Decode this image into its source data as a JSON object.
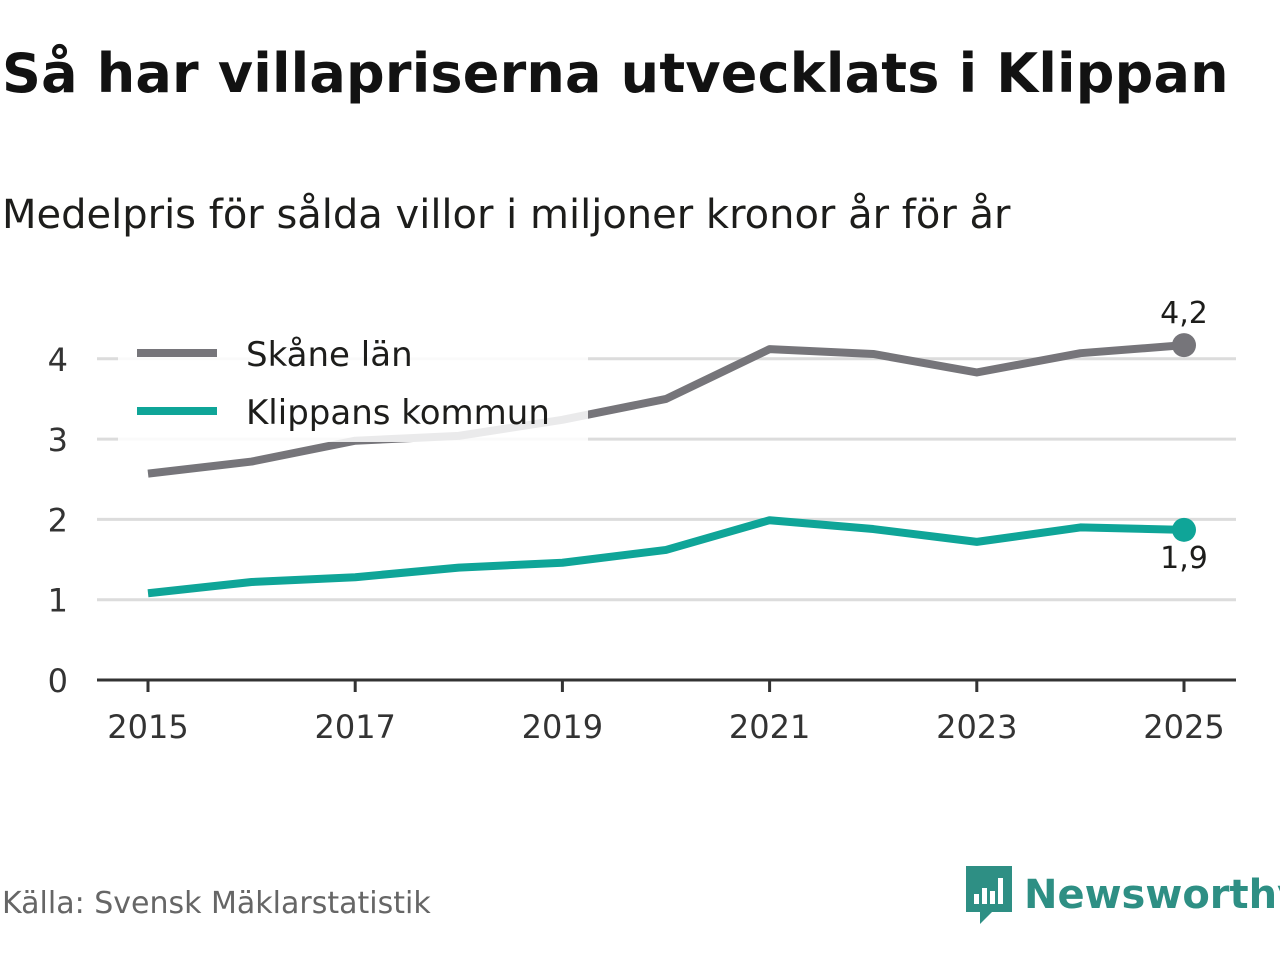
{
  "title": "Så har villapriserna utvecklats i Klippan",
  "subtitle": "Medelpris för sålda villor i miljoner kronor år för år",
  "source": "Källa: Svensk Mäklarstatistik",
  "brand": {
    "name": "Newsworthy",
    "icon": "newsworthy-logo-icon",
    "color": "#2e8f84"
  },
  "chart_data": {
    "type": "line",
    "title": "Så har villapriserna utvecklats i Klippan",
    "subtitle": "Medelpris för sålda villor i miljoner kronor år för år",
    "xlabel": "",
    "ylabel": "",
    "x": [
      2015,
      2016,
      2017,
      2018,
      2019,
      2020,
      2021,
      2022,
      2023,
      2024,
      2025
    ],
    "x_ticks": [
      2015,
      2017,
      2019,
      2021,
      2023,
      2025
    ],
    "y_ticks": [
      0,
      1,
      2,
      3,
      4
    ],
    "ylim": [
      0,
      4.5
    ],
    "xlim": [
      2015,
      2025
    ],
    "grid": true,
    "legend_position": "top-left",
    "series": [
      {
        "name": "Skåne län",
        "color": "#76757a",
        "values": [
          2.57,
          2.72,
          2.98,
          3.04,
          3.24,
          3.5,
          4.12,
          4.06,
          3.83,
          4.07,
          4.17
        ],
        "end_label": "4,2"
      },
      {
        "name": "Klippans kommun",
        "color": "#0fa598",
        "values": [
          1.08,
          1.22,
          1.28,
          1.4,
          1.46,
          1.62,
          1.99,
          1.88,
          1.72,
          1.9,
          1.87
        ],
        "end_label": "1,9"
      }
    ]
  }
}
